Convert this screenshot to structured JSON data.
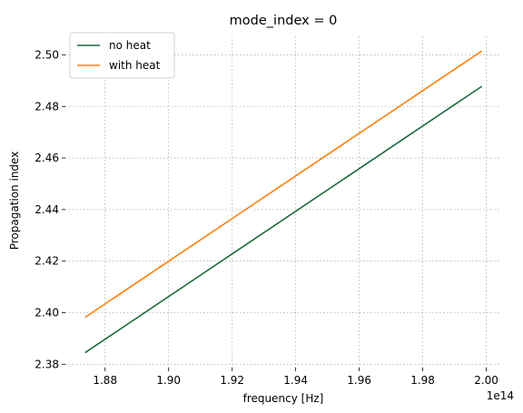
{
  "chart_data": {
    "type": "line",
    "title": "mode_index = 0",
    "xlabel": "frequency [Hz]",
    "ylabel": "Propagation index",
    "x_offset_text": "1e14",
    "x_scale": 100000000000000.0,
    "xlim": [
      186750000000000.0,
      200470000000000.0
    ],
    "ylim": [
      2.3787,
      2.5072
    ],
    "x_ticks": [
      188000000000000.0,
      190000000000000.0,
      192000000000000.0,
      194000000000000.0,
      196000000000000.0,
      198000000000000.0,
      200000000000000.0
    ],
    "x_tick_labels": [
      "1.88",
      "1.90",
      "1.92",
      "1.94",
      "1.96",
      "1.98",
      "2.00"
    ],
    "y_ticks": [
      2.38,
      2.4,
      2.42,
      2.44,
      2.46,
      2.48,
      2.5
    ],
    "y_tick_labels": [
      "2.38",
      "2.40",
      "2.42",
      "2.44",
      "2.46",
      "2.48",
      "2.50"
    ],
    "grid": true,
    "legend_position": "top-left",
    "series": [
      {
        "name": "no heat",
        "color": "#1b6a3a",
        "x": [
          187370000000000.0,
          199860000000000.0
        ],
        "y": [
          2.3845,
          2.4878
        ]
      },
      {
        "name": "with heat",
        "color": "#ff7f0e",
        "x": [
          187370000000000.0,
          199860000000000.0
        ],
        "y": [
          2.3982,
          2.5015
        ]
      }
    ]
  }
}
